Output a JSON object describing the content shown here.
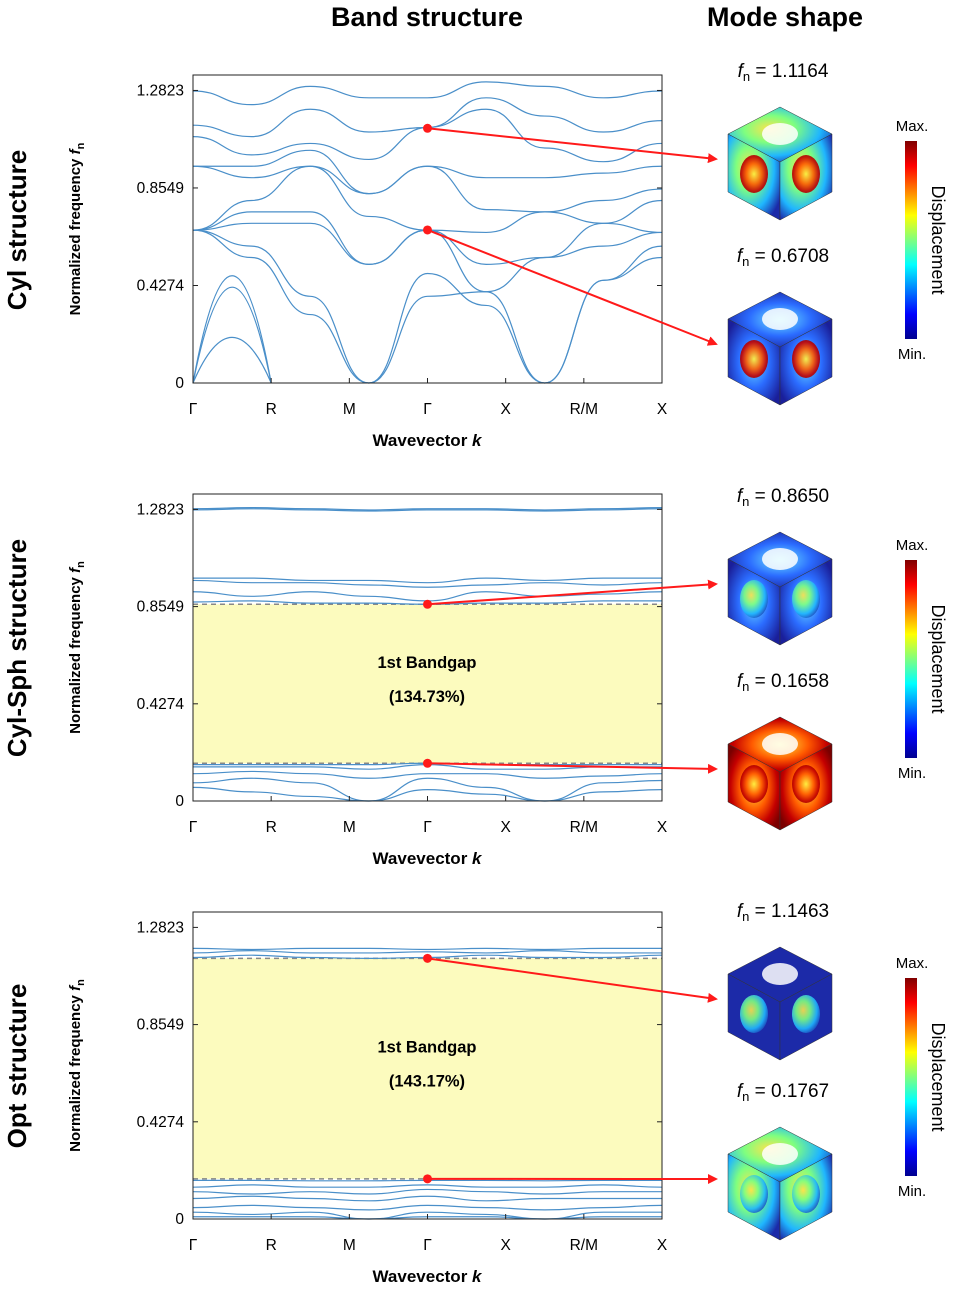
{
  "headers": {
    "band": "Band structure",
    "mode": "Mode shape"
  },
  "colorbar": {
    "max": "Max.",
    "min": "Min.",
    "title": "Displacement"
  },
  "chart_data": [
    {
      "type": "line",
      "row_label": "Cyl structure",
      "ylabel_main": "Normalized frequency ",
      "ylabel_sym": "f",
      "ylabel_sub": "n",
      "xlabel_main": "Wavevector ",
      "xlabel_sym": "k",
      "categories": [
        "Γ",
        "R",
        "M",
        "Γ",
        "X",
        "R/M",
        "X"
      ],
      "yticks": [
        "0",
        "0.4274",
        "0.8549",
        "1.2823"
      ],
      "ylim": [
        0,
        1.35
      ],
      "bandgap": null,
      "gap_label": "",
      "gap_percent": "",
      "upper_mode": {
        "freq_sym": "f",
        "freq_sub": "n",
        "freq_text": " = 1.1164",
        "value": 1.1164,
        "x": 3
      },
      "lower_mode": {
        "freq_sym": "f",
        "freq_sub": "n",
        "freq_text": " = 0.6708",
        "value": 0.6708,
        "x": 3
      },
      "series": [
        {
          "values": [
            [
              0,
              0
            ],
            [
              0.5,
              0.42
            ],
            [
              1,
              0
            ]
          ]
        },
        {
          "values": [
            [
              0,
              0
            ],
            [
              0.5,
              0.47
            ],
            [
              1,
              0
            ]
          ]
        },
        {
          "values": [
            [
              0,
              0
            ],
            [
              0.5,
              0.2
            ],
            [
              1,
              0
            ]
          ]
        }
      ],
      "bands": [
        [
          0.67,
          0.55,
          0.3,
          0.0,
          0.48,
          0.34,
          0.0,
          0.45,
          0.55
        ],
        [
          0.67,
          0.6,
          0.38,
          0.0,
          0.38,
          0.4,
          0.0,
          0.45,
          0.6
        ],
        [
          0.67,
          0.7,
          0.7,
          0.52,
          0.67,
          0.4,
          0.55,
          0.6,
          0.66
        ],
        [
          0.67,
          0.75,
          0.75,
          0.52,
          0.67,
          0.52,
          0.55,
          0.7,
          0.66
        ],
        [
          0.67,
          0.8,
          0.95,
          0.73,
          0.67,
          0.66,
          0.75,
          0.7,
          0.8
        ],
        [
          0.95,
          0.9,
          0.95,
          0.83,
          0.95,
          0.76,
          0.75,
          0.8,
          0.85
        ],
        [
          0.95,
          0.95,
          1.02,
          0.83,
          0.95,
          0.9,
          0.9,
          0.92,
          0.95
        ],
        [
          1.08,
          1.0,
          1.05,
          0.98,
          1.12,
          1.2,
          1.03,
          0.97,
          1.05
        ],
        [
          1.13,
          1.08,
          1.2,
          1.1,
          1.12,
          1.25,
          1.17,
          1.1,
          1.15
        ],
        [
          1.28,
          1.22,
          1.3,
          1.25,
          1.25,
          1.32,
          1.3,
          1.25,
          1.28
        ]
      ]
    },
    {
      "type": "line",
      "row_label": "Cyl-Sph structure",
      "ylabel_main": "Normalized frequency ",
      "ylabel_sym": "f",
      "ylabel_sub": "n",
      "xlabel_main": "Wavevector ",
      "xlabel_sym": "k",
      "categories": [
        "Γ",
        "R",
        "M",
        "Γ",
        "X",
        "R/M",
        "X"
      ],
      "yticks": [
        "0",
        "0.4274",
        "0.8549",
        "1.2823"
      ],
      "ylim": [
        0,
        1.35
      ],
      "bandgap": [
        0.1658,
        0.865
      ],
      "gap_label": "1st Bandgap",
      "gap_percent": "(134.73%)",
      "upper_mode": {
        "freq_sym": "f",
        "freq_sub": "n",
        "freq_text": " = 0.8650",
        "value": 0.865,
        "x": 3
      },
      "lower_mode": {
        "freq_sym": "f",
        "freq_sub": "n",
        "freq_text": " = 0.1658",
        "value": 0.1658,
        "x": 3
      },
      "bands": [
        [
          0.06,
          0.04,
          0.02,
          0.0,
          0.05,
          0.03,
          0.0,
          0.04,
          0.05
        ],
        [
          0.08,
          0.1,
          0.08,
          0.0,
          0.1,
          0.06,
          0.0,
          0.08,
          0.09
        ],
        [
          0.12,
          0.13,
          0.12,
          0.1,
          0.12,
          0.12,
          0.1,
          0.11,
          0.12
        ],
        [
          0.15,
          0.15,
          0.15,
          0.14,
          0.16,
          0.14,
          0.14,
          0.15,
          0.15
        ],
        [
          0.16,
          0.16,
          0.16,
          0.16,
          0.166,
          0.16,
          0.16,
          0.16,
          0.16
        ],
        [
          0.875,
          0.88,
          0.87,
          0.87,
          0.865,
          0.87,
          0.87,
          0.88,
          0.88
        ],
        [
          0.92,
          0.9,
          0.92,
          0.9,
          0.88,
          0.92,
          0.9,
          0.91,
          0.92
        ],
        [
          0.97,
          0.96,
          0.96,
          0.95,
          0.94,
          0.95,
          0.96,
          0.95,
          0.96
        ],
        [
          0.98,
          0.98,
          0.97,
          0.97,
          0.96,
          0.98,
          0.97,
          0.98,
          0.98
        ],
        [
          1.28,
          1.285,
          1.28,
          1.275,
          1.28,
          1.28,
          1.275,
          1.28,
          1.285
        ],
        [
          1.285,
          1.29,
          1.285,
          1.28,
          1.285,
          1.285,
          1.28,
          1.285,
          1.29
        ]
      ]
    },
    {
      "type": "line",
      "row_label": "Opt structure",
      "ylabel_main": "Normalized frequency ",
      "ylabel_sym": "f",
      "ylabel_sub": "n",
      "xlabel_main": "Wavevector ",
      "xlabel_sym": "k",
      "categories": [
        "Γ",
        "R",
        "M",
        "Γ",
        "X",
        "R/M",
        "X"
      ],
      "yticks": [
        "0",
        "0.4274",
        "0.8549",
        "1.2823"
      ],
      "ylim": [
        0,
        1.35
      ],
      "bandgap": [
        0.1767,
        1.1463
      ],
      "gap_label": "1st Bandgap",
      "gap_percent": "(143.17%)",
      "upper_mode": {
        "freq_sym": "f",
        "freq_sub": "n",
        "freq_text": " = 1.1463",
        "value": 1.1463,
        "x": 3
      },
      "lower_mode": {
        "freq_sym": "f",
        "freq_sub": "n",
        "freq_text": " = 0.1767",
        "value": 0.1767,
        "x": 3
      },
      "bands": [
        [
          0.01,
          0.01,
          0.01,
          0.0,
          0.01,
          0.01,
          0.0,
          0.01,
          0.01
        ],
        [
          0.03,
          0.02,
          0.03,
          0.0,
          0.03,
          0.02,
          0.0,
          0.03,
          0.03
        ],
        [
          0.05,
          0.06,
          0.05,
          0.04,
          0.06,
          0.05,
          0.04,
          0.05,
          0.06
        ],
        [
          0.09,
          0.1,
          0.09,
          0.08,
          0.1,
          0.08,
          0.09,
          0.09,
          0.09
        ],
        [
          0.12,
          0.11,
          0.12,
          0.11,
          0.13,
          0.12,
          0.11,
          0.12,
          0.12
        ],
        [
          0.14,
          0.15,
          0.14,
          0.14,
          0.15,
          0.14,
          0.14,
          0.15,
          0.14
        ],
        [
          0.17,
          0.17,
          0.168,
          0.168,
          0.17,
          0.17,
          0.168,
          0.17,
          0.17
        ],
        [
          1.15,
          1.16,
          1.15,
          1.146,
          1.15,
          1.16,
          1.15,
          1.15,
          1.16
        ],
        [
          1.17,
          1.18,
          1.17,
          1.17,
          1.175,
          1.17,
          1.18,
          1.17,
          1.17
        ],
        [
          1.19,
          1.185,
          1.19,
          1.19,
          1.185,
          1.19,
          1.185,
          1.19,
          1.19
        ]
      ]
    }
  ]
}
